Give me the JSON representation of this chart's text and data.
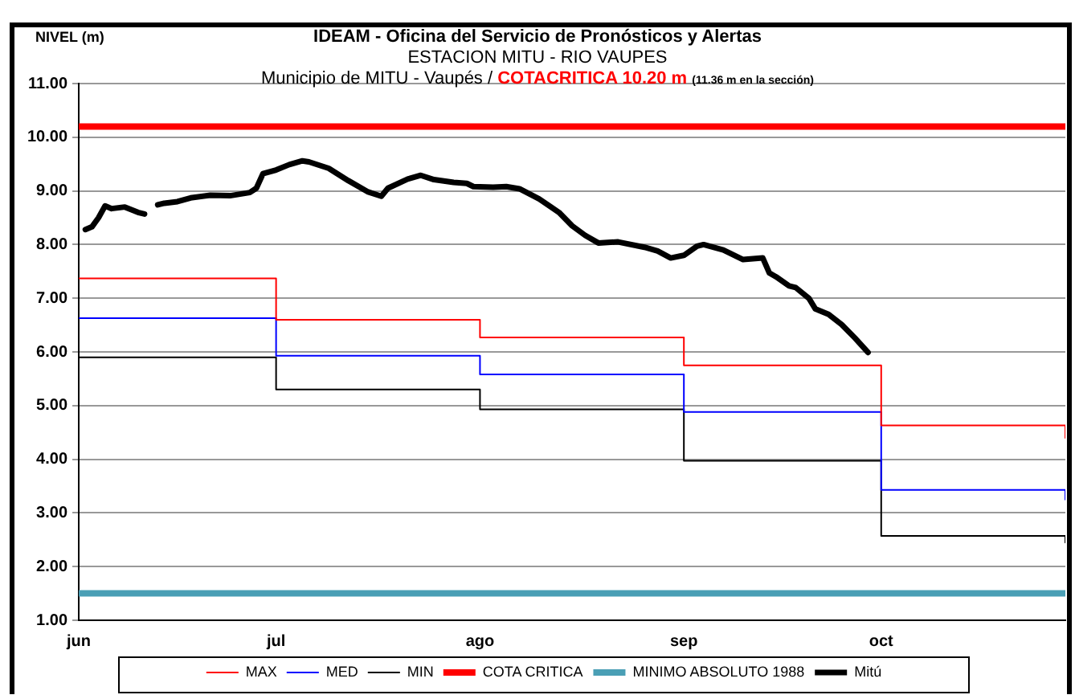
{
  "chart_data": {
    "type": "line",
    "title": "IDEAM - Oficina del Servicio de Pronósticos y Alertas",
    "subtitle": "ESTACION MITU - RIO VAUPES",
    "ylabel": "NIVEL (m)",
    "annotations": [
      "Municipio de MITU - Vaupés /",
      "COTACRITICA 10.20 m",
      "(11.36 m  en la sección)"
    ],
    "xlim": [
      "--06-01",
      "--10-29"
    ],
    "xticks": [
      {
        "value": "--06-01",
        "label": "jun"
      },
      {
        "value": "--07-01",
        "label": "jul"
      },
      {
        "value": "--08-01",
        "label": "ago"
      },
      {
        "value": "--09-01",
        "label": "sep"
      },
      {
        "value": "--10-01",
        "label": "oct"
      }
    ],
    "ylim": [
      1,
      11
    ],
    "yticks": [
      {
        "value": 1,
        "label": "1.00"
      },
      {
        "value": 2,
        "label": "2.00"
      },
      {
        "value": 3,
        "label": "3.00"
      },
      {
        "value": 4,
        "label": "4.00"
      },
      {
        "value": 5,
        "label": "5.00"
      },
      {
        "value": 6,
        "label": "6.00"
      },
      {
        "value": 7,
        "label": "7.00"
      },
      {
        "value": 8,
        "label": "8.00"
      },
      {
        "value": 9,
        "label": "9.00"
      },
      {
        "value": 10,
        "label": "10.00"
      },
      {
        "value": 11,
        "label": "11.00"
      }
    ],
    "grid": "y",
    "legend": "bottom",
    "marker": "none",
    "ref_lines": [
      {
        "axis": "y",
        "value": 10.2,
        "label": "COTA CRITICA",
        "color": "#ff0000"
      },
      {
        "axis": "y",
        "value": 1.5,
        "label": "MINIMO ABSOLUTO 1988",
        "color": "#4a9fb5"
      }
    ],
    "series": [
      {
        "name": "MAX",
        "type": "step",
        "color": "#ff0000",
        "x": [
          "--06-01",
          "--07-01",
          "--08-01",
          "--09-01",
          "--10-01",
          "--10-29"
        ],
        "values": [
          7.37,
          6.6,
          6.27,
          5.75,
          4.63,
          4.4
        ]
      },
      {
        "name": "MED",
        "type": "step",
        "color": "#0000ff",
        "x": [
          "--06-01",
          "--07-01",
          "--08-01",
          "--09-01",
          "--10-01",
          "--10-29"
        ],
        "values": [
          6.63,
          5.93,
          5.58,
          4.88,
          3.43,
          3.25
        ]
      },
      {
        "name": "MIN",
        "type": "step",
        "color": "#000000",
        "x": [
          "--06-01",
          "--07-01",
          "--08-01",
          "--09-01",
          "--10-01",
          "--10-29"
        ],
        "values": [
          5.9,
          5.3,
          4.93,
          3.97,
          2.57,
          2.45
        ]
      },
      {
        "name": "Mitú",
        "type": "line",
        "color": "#000000",
        "x": [
          "--06-02",
          "--06-03",
          "--06-04",
          "--06-05",
          "--06-06",
          "--06-08",
          "--06-10",
          "--06-11",
          "--06-12",
          "--06-13",
          "--06-14",
          "--06-16",
          "--06-18",
          "--06-21",
          "--06-24",
          "--06-27",
          "--06-28",
          "--06-29",
          "--07-01",
          "--07-03",
          "--07-05",
          "--07-06",
          "--07-09",
          "--07-12",
          "--07-15",
          "--07-17",
          "--07-18",
          "--07-21",
          "--07-23",
          "--07-25",
          "--07-28",
          "--07-30",
          "--07-31",
          "--08-03",
          "--08-05",
          "--08-07",
          "--08-10",
          "--08-13",
          "--08-15",
          "--08-17",
          "--08-19",
          "--08-22",
          "--08-26",
          "--08-28",
          "--08-30",
          "--09-01",
          "--09-03",
          "--09-04",
          "--09-07",
          "--09-10",
          "--09-13",
          "--09-14",
          "--09-15",
          "--09-17",
          "--09-18",
          "--09-20",
          "--09-21",
          "--09-23",
          "--09-25",
          "--09-27",
          "--09-29"
        ],
        "values": [
          8.28,
          8.33,
          8.5,
          8.72,
          8.67,
          8.7,
          8.6,
          8.57,
          null,
          8.74,
          8.77,
          8.8,
          8.87,
          8.92,
          8.91,
          8.97,
          9.05,
          9.32,
          9.39,
          9.49,
          9.56,
          9.54,
          9.42,
          9.19,
          8.98,
          8.9,
          9.05,
          9.22,
          9.29,
          9.21,
          9.16,
          9.14,
          9.08,
          9.07,
          9.08,
          9.04,
          8.85,
          8.6,
          8.35,
          8.17,
          8.03,
          8.05,
          7.95,
          7.88,
          7.75,
          7.8,
          7.97,
          8.0,
          7.9,
          7.72,
          7.75,
          7.47,
          7.4,
          7.23,
          7.2,
          7.0,
          6.8,
          6.7,
          6.51,
          6.26,
          5.99
        ]
      }
    ]
  }
}
